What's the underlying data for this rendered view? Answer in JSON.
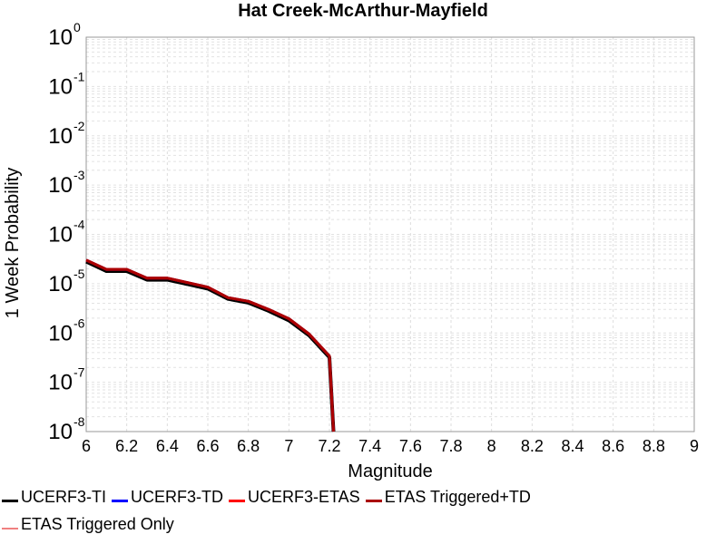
{
  "chart_data": {
    "type": "line",
    "title": "Hat Creek-McArthur-Mayfield",
    "xlabel": "Magnitude",
    "ylabel": "1 Week Probability",
    "xlim": [
      6,
      9
    ],
    "ylim_exp": [
      -8,
      0
    ],
    "yscale": "log",
    "grid": true,
    "legend_position": "bottom",
    "x_ticks": [
      "6",
      "6.2",
      "6.4",
      "6.6",
      "6.8",
      "7",
      "7.2",
      "7.4",
      "7.6",
      "7.8",
      "8",
      "8.2",
      "8.4",
      "8.6",
      "8.8",
      "9"
    ],
    "y_ticks": [
      {
        "base": "10",
        "exp": "0"
      },
      {
        "base": "10",
        "exp": "-1"
      },
      {
        "base": "10",
        "exp": "-2"
      },
      {
        "base": "10",
        "exp": "-3"
      },
      {
        "base": "10",
        "exp": "-4"
      },
      {
        "base": "10",
        "exp": "-5"
      },
      {
        "base": "10",
        "exp": "-6"
      },
      {
        "base": "10",
        "exp": "-7"
      },
      {
        "base": "10",
        "exp": "-8"
      }
    ],
    "series": [
      {
        "name": "UCERF3-TI",
        "color": "#000000",
        "width": 4,
        "x": [
          6.0,
          6.1,
          6.2,
          6.3,
          6.4,
          6.5,
          6.6,
          6.7,
          6.8,
          6.9,
          7.0,
          7.1,
          7.2,
          7.22
        ],
        "y": [
          2.8e-05,
          1.8e-05,
          1.8e-05,
          1.2e-05,
          1.2e-05,
          9.8e-06,
          7.9e-06,
          4.9e-06,
          4.1e-06,
          2.8e-06,
          1.8e-06,
          8.9e-07,
          3.2e-07,
          8e-09
        ]
      },
      {
        "name": "UCERF3-TD",
        "color": "#0000ff",
        "width": 3,
        "x": [
          6.0,
          6.1,
          6.2,
          6.3,
          6.4,
          6.5,
          6.6,
          6.7,
          6.8,
          6.9,
          7.0,
          7.1,
          7.2,
          7.22
        ],
        "y": [
          3e-05,
          1.95e-05,
          1.95e-05,
          1.3e-05,
          1.3e-05,
          1.05e-05,
          8.5e-06,
          5.2e-06,
          4.4e-06,
          3e-06,
          1.95e-06,
          9.5e-07,
          3.4e-07,
          8e-09
        ]
      },
      {
        "name": "UCERF3-ETAS",
        "color": "#ff0000",
        "width": 3,
        "x": [
          6.0,
          6.1,
          6.2,
          6.3,
          6.4,
          6.5,
          6.6,
          6.7,
          6.8,
          6.9,
          7.0,
          7.1,
          7.2,
          7.22
        ],
        "y": [
          3e-05,
          1.95e-05,
          1.95e-05,
          1.3e-05,
          1.3e-05,
          1.05e-05,
          8.5e-06,
          5.2e-06,
          4.4e-06,
          3e-06,
          1.95e-06,
          9.5e-07,
          3.4e-07,
          8e-09
        ]
      },
      {
        "name": "ETAS Triggered+TD",
        "color": "#aa0000",
        "width": 3,
        "x": [
          6.0,
          6.1,
          6.2,
          6.3,
          6.4,
          6.5,
          6.6,
          6.7,
          6.8,
          6.9,
          7.0,
          7.1,
          7.2,
          7.22
        ],
        "y": [
          3e-05,
          1.95e-05,
          1.95e-05,
          1.3e-05,
          1.3e-05,
          1.05e-05,
          8.5e-06,
          5.2e-06,
          4.4e-06,
          3e-06,
          1.95e-06,
          9.5e-07,
          3.4e-07,
          8e-09
        ]
      },
      {
        "name": "ETAS Triggered Only",
        "color": "#f08080",
        "width": 2,
        "x": [],
        "y": []
      }
    ]
  }
}
